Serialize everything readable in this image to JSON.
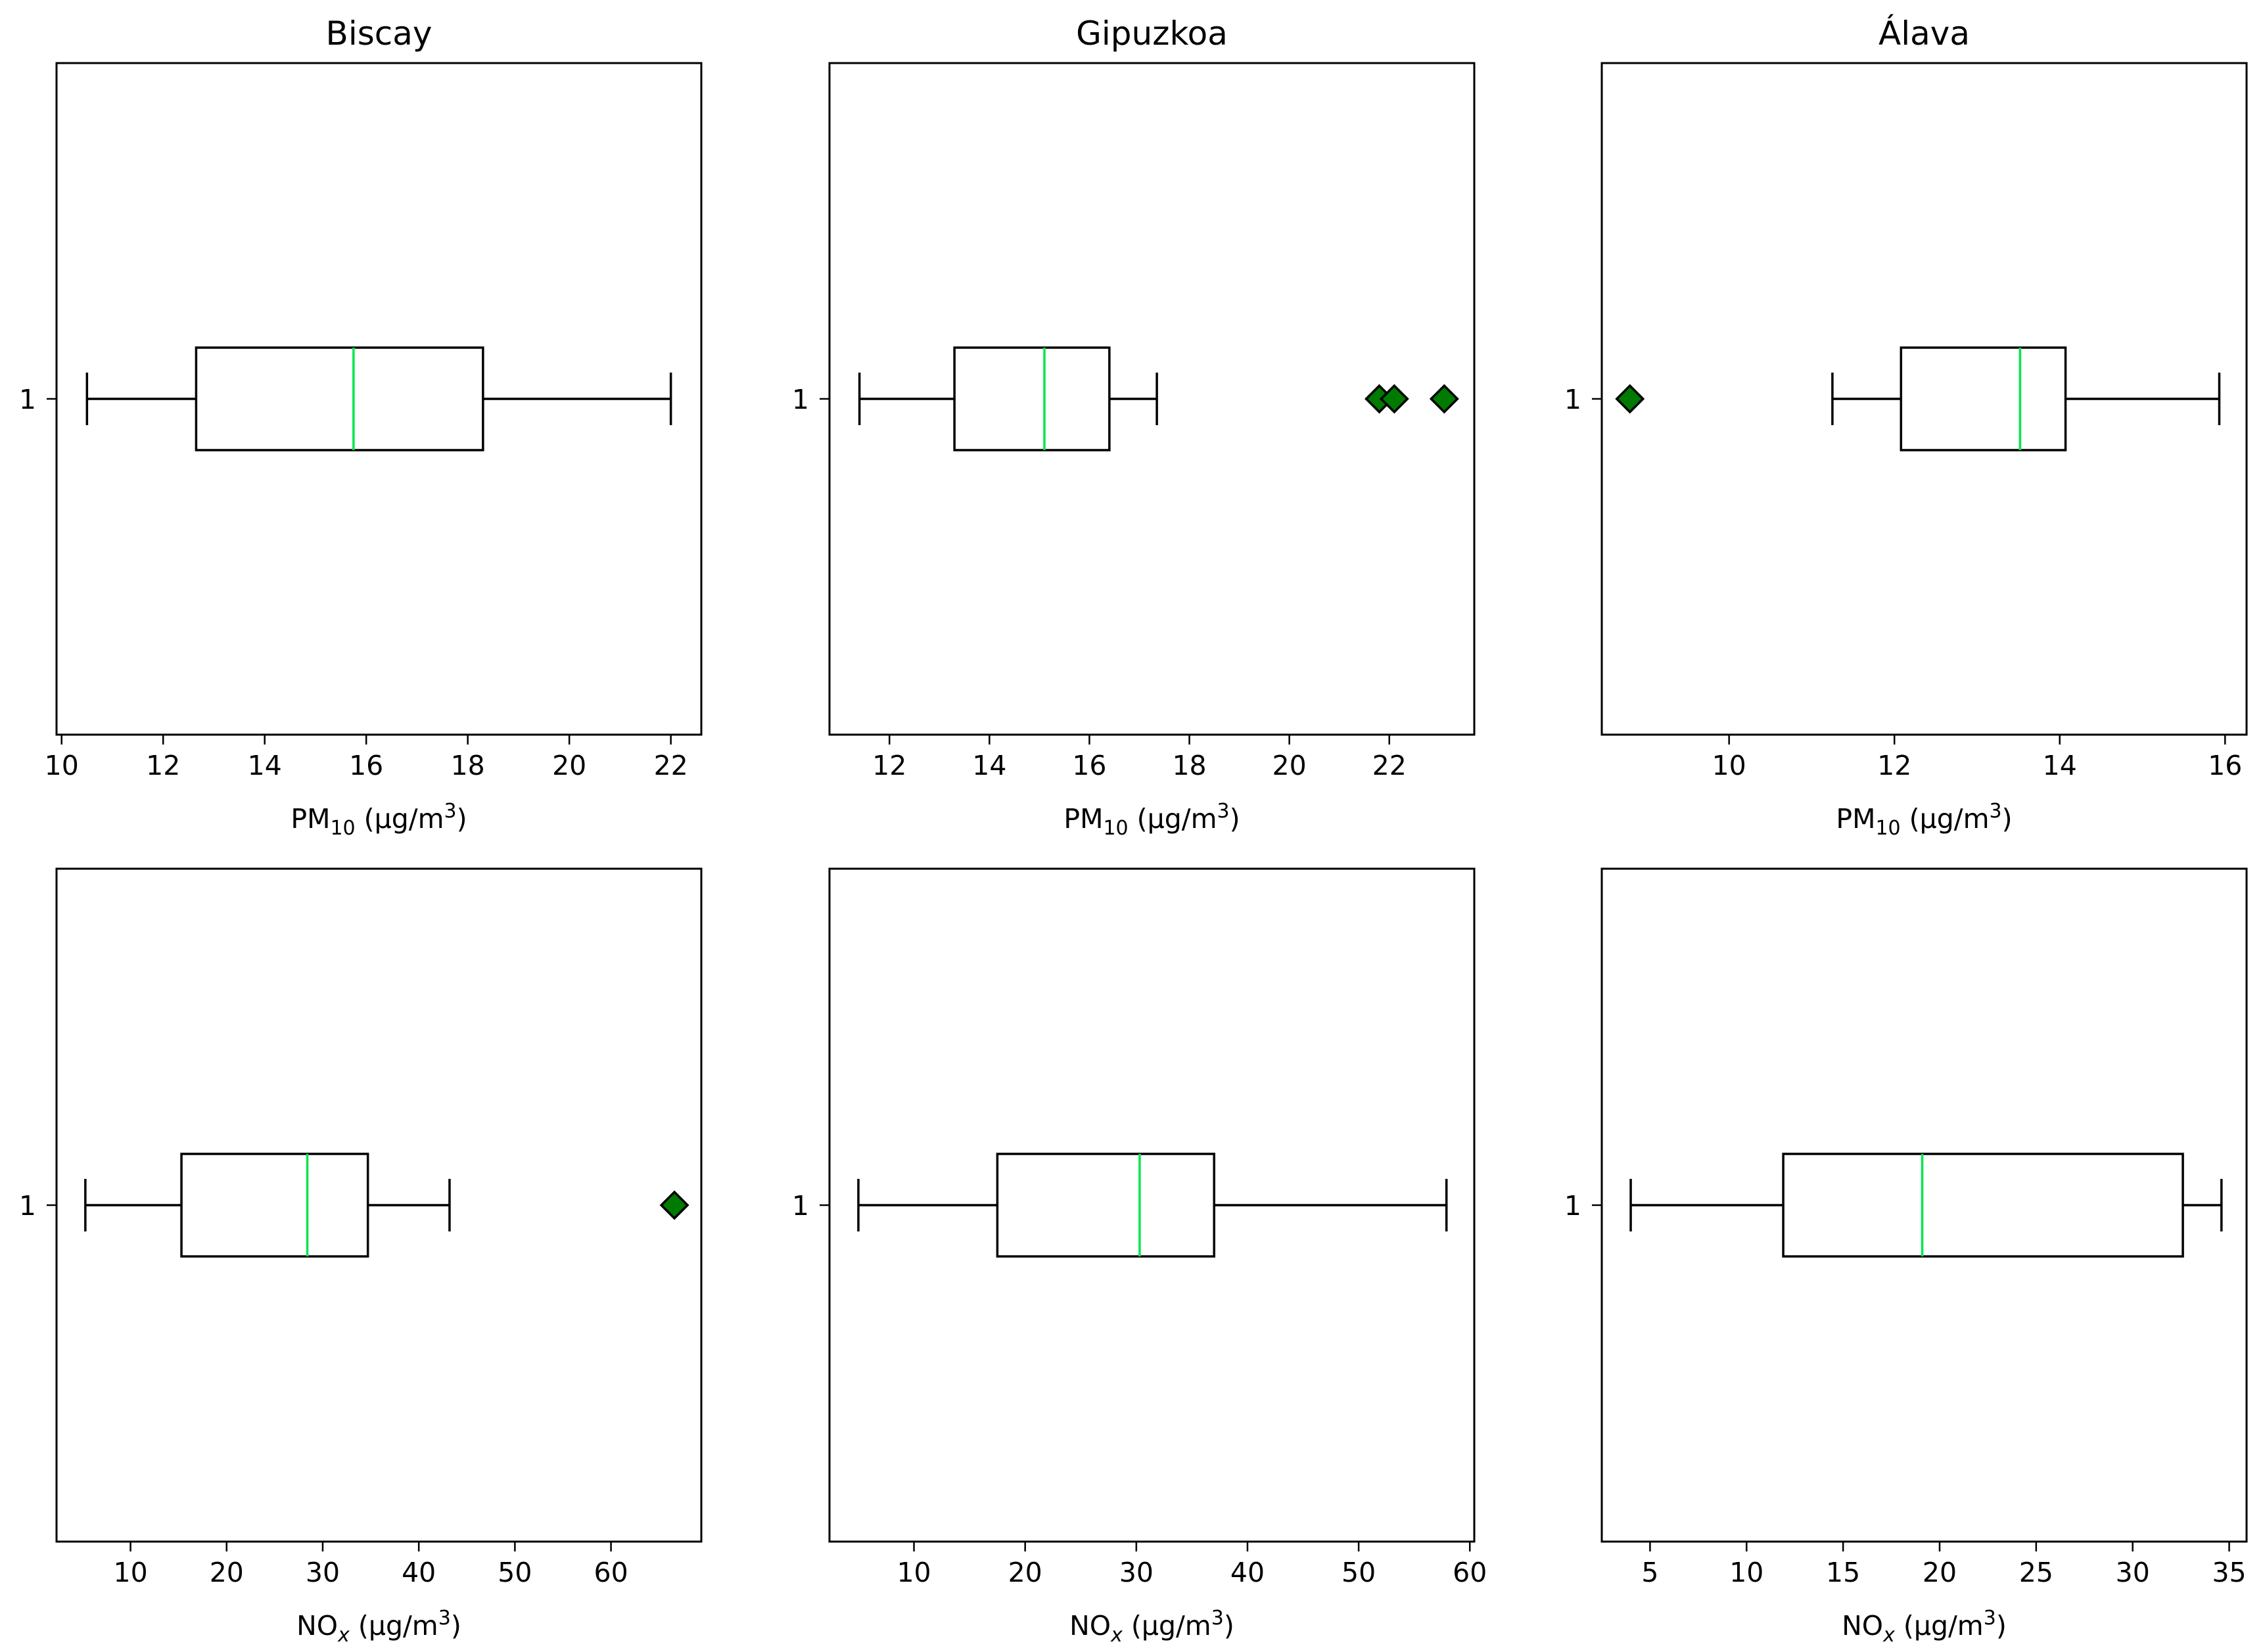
{
  "chart_data": [
    {
      "type": "boxplot",
      "title": "Biscay",
      "xlabel": "PM10 (µg/m3)",
      "xlabel_parts": {
        "main": "PM",
        "sub": "10",
        "unit_open": " (µg/m",
        "sup": "3",
        "unit_close": ")"
      },
      "ytick_label": "1",
      "xlim": [
        9.9,
        22.6
      ],
      "xticks": [
        10,
        12,
        14,
        16,
        18,
        20,
        22
      ],
      "whisker_low": 10.5,
      "q1": 12.65,
      "median": 15.75,
      "q3": 18.3,
      "whisker_high": 22.0,
      "outliers": []
    },
    {
      "type": "boxplot",
      "title": "Gipuzkoa",
      "xlabel": "PM10 (µg/m3)",
      "xlabel_parts": {
        "main": "PM",
        "sub": "10",
        "unit_open": " (µg/m",
        "sup": "3",
        "unit_close": ")"
      },
      "ytick_label": "1",
      "xlim": [
        10.8,
        23.7
      ],
      "xticks": [
        12,
        14,
        16,
        18,
        20,
        22
      ],
      "whisker_low": 11.4,
      "q1": 13.3,
      "median": 15.1,
      "q3": 16.4,
      "whisker_high": 17.35,
      "outliers": [
        21.8,
        22.1,
        23.1
      ]
    },
    {
      "type": "boxplot",
      "title": "Álava",
      "xlabel": "PM10 (µg/m3)",
      "xlabel_parts": {
        "main": "PM",
        "sub": "10",
        "unit_open": " (µg/m",
        "sup": "3",
        "unit_close": ")"
      },
      "ytick_label": "1",
      "xlim": [
        8.46,
        16.26
      ],
      "xticks": [
        10,
        12,
        14,
        16
      ],
      "whisker_low": 11.25,
      "q1": 12.08,
      "median": 13.52,
      "q3": 14.07,
      "whisker_high": 15.93,
      "outliers": [
        8.8
      ]
    },
    {
      "type": "boxplot",
      "title": "",
      "xlabel": "NOx (µg/m3)",
      "xlabel_parts": {
        "main": "NO",
        "sub": "x",
        "unit_open": " (µg/m",
        "sup": "3",
        "unit_close": ")"
      },
      "ytick_label": "1",
      "xlim": [
        2.3,
        69.4
      ],
      "xticks": [
        10,
        20,
        30,
        40,
        50,
        60
      ],
      "whisker_low": 5.3,
      "q1": 15.3,
      "median": 28.4,
      "q3": 34.7,
      "whisker_high": 43.2,
      "outliers": [
        66.6
      ]
    },
    {
      "type": "boxplot",
      "title": "",
      "xlabel": "NOx (µg/m3)",
      "xlabel_parts": {
        "main": "NO",
        "sub": "x",
        "unit_open": " (µg/m",
        "sup": "3",
        "unit_close": ")"
      },
      "ytick_label": "1",
      "xlim": [
        2.4,
        60.4
      ],
      "xticks": [
        10,
        20,
        30,
        40,
        50,
        60
      ],
      "whisker_low": 5.0,
      "q1": 17.5,
      "median": 30.3,
      "q3": 37.0,
      "whisker_high": 57.9,
      "outliers": []
    },
    {
      "type": "boxplot",
      "title": "",
      "xlabel": "NOx (µg/m3)",
      "xlabel_parts": {
        "main": "NO",
        "sub": "x",
        "unit_open": " (µg/m",
        "sup": "3",
        "unit_close": ")"
      },
      "ytick_label": "1",
      "xlim": [
        2.5,
        35.9
      ],
      "xticks": [
        5,
        10,
        15,
        20,
        25,
        30,
        35
      ],
      "whisker_low": 4.0,
      "q1": 11.9,
      "median": 19.1,
      "q3": 32.6,
      "whisker_high": 34.6,
      "outliers": []
    }
  ],
  "colors": {
    "median": "#00e64d",
    "outlier_fill": "#007a00",
    "stroke": "#000000"
  }
}
